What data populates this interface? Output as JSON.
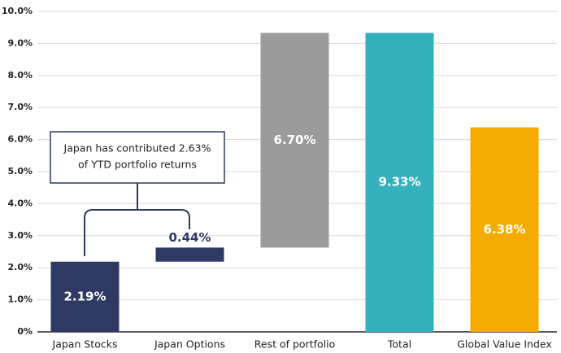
{
  "chart_data": {
    "type": "waterfall",
    "categories": [
      "Japan Stocks",
      "Japan Options",
      "Rest of portfolio",
      "Total",
      "Global Value Index"
    ],
    "values": [
      2.19,
      0.44,
      6.7,
      9.33,
      6.38
    ],
    "value_labels": [
      "2.19%",
      "0.44%",
      "6.70%",
      "9.33%",
      "6.38%"
    ],
    "measure": [
      "relative",
      "relative",
      "relative",
      "total",
      "absolute"
    ],
    "colors": [
      "#2e3a63",
      "#2e3a63",
      "#9b9b9b",
      "#35b0bd",
      "#f5aa00"
    ],
    "ylim": [
      0,
      10
    ],
    "yticks": [
      {
        "value": 0,
        "label": "0%"
      },
      {
        "value": 1,
        "label": "1.0%"
      },
      {
        "value": 2,
        "label": "2.0%"
      },
      {
        "value": 3,
        "label": "3.0%"
      },
      {
        "value": 4,
        "label": "4.0%"
      },
      {
        "value": 5,
        "label": "5.0%"
      },
      {
        "value": 6,
        "label": "6.0%"
      },
      {
        "value": 7,
        "label": "7.0%"
      },
      {
        "value": 8,
        "label": "8.0%"
      },
      {
        "value": 9,
        "label": "9.0%"
      },
      {
        "value": 10,
        "label": "10.0%"
      }
    ],
    "grid": true,
    "annotation": [
      "Japan has contributed 2.63%",
      "of YTD portfolio returns"
    ]
  }
}
